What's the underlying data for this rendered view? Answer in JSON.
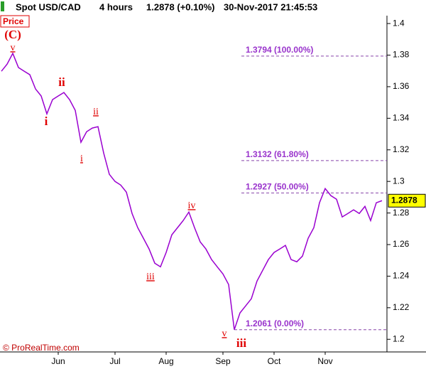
{
  "chart_data": {
    "type": "line",
    "header": {
      "instrument": "Spot USD/CAD",
      "timeframe": "4 hours",
      "change": "1.2878 (+0.10%)",
      "timestamp": "30-Nov-2017 21:45:53"
    },
    "credit": "© ProRealTime.com",
    "categories": [
      null,
      null,
      null,
      null,
      null,
      null,
      null,
      null,
      null,
      null,
      "Jun",
      null,
      null,
      null,
      null,
      null,
      null,
      null,
      null,
      null,
      "Jul",
      null,
      null,
      null,
      null,
      null,
      null,
      null,
      null,
      "Aug",
      null,
      null,
      null,
      null,
      null,
      null,
      null,
      null,
      null,
      "Sep",
      null,
      null,
      null,
      null,
      null,
      null,
      null,
      null,
      "Oct",
      null,
      null,
      null,
      null,
      null,
      null,
      null,
      null,
      "Nov",
      null,
      null,
      null,
      null,
      null,
      null,
      null,
      null,
      null,
      null
    ],
    "series": [
      {
        "name": "Price",
        "color": "#9a00d0",
        "values": [
          1.3698,
          1.3743,
          1.3811,
          1.3721,
          1.3698,
          1.3676,
          1.3586,
          1.3541,
          1.3428,
          1.3518,
          1.3541,
          1.3563,
          1.3518,
          1.345,
          1.3248,
          1.3315,
          1.3338,
          1.3347,
          1.318,
          1.3045,
          1.3,
          1.2977,
          1.2932,
          1.2797,
          1.2707,
          1.264,
          1.2572,
          1.2482,
          1.2459,
          1.255,
          1.2662,
          1.2707,
          1.2752,
          1.2806,
          1.2707,
          1.2617,
          1.2572,
          1.2505,
          1.2459,
          1.2414,
          1.2347,
          1.2061,
          1.2167,
          1.2212,
          1.2257,
          1.2369,
          1.2437,
          1.2505,
          1.255,
          1.2572,
          1.2595,
          1.2505,
          1.2491,
          1.2527,
          1.264,
          1.2707,
          1.2865,
          1.2955,
          1.291,
          1.2887,
          1.2775,
          1.2797,
          1.282,
          1.2797,
          1.2842,
          1.2752,
          1.2865,
          1.2878
        ]
      }
    ],
    "ylim": [
      1.192,
      1.405
    ],
    "yticks": [
      1.2,
      1.22,
      1.24,
      1.26,
      1.28,
      1.3,
      1.32,
      1.34,
      1.36,
      1.38,
      1.4
    ],
    "fib_levels": [
      {
        "value": 1.3794,
        "label": "1.3794 (100.00%)"
      },
      {
        "value": 1.3132,
        "label": "1.3132 (61.80%)"
      },
      {
        "value": 1.2927,
        "label": "1.2927 (50.00%)"
      },
      {
        "value": 1.2061,
        "label": "1.2061 (0.00%)"
      }
    ],
    "annotations": [
      {
        "text": "(C)",
        "style": "major"
      },
      {
        "text": "v",
        "style": "minor"
      },
      {
        "text": "ii",
        "style": "major"
      },
      {
        "text": "i",
        "style": "major"
      },
      {
        "text": "ii",
        "style": "minor"
      },
      {
        "text": "i",
        "style": "minor"
      },
      {
        "text": "iii",
        "style": "minor"
      },
      {
        "text": "iv",
        "style": "minor"
      },
      {
        "text": "v",
        "style": "minor"
      },
      {
        "text": "iii",
        "style": "major"
      }
    ]
  }
}
